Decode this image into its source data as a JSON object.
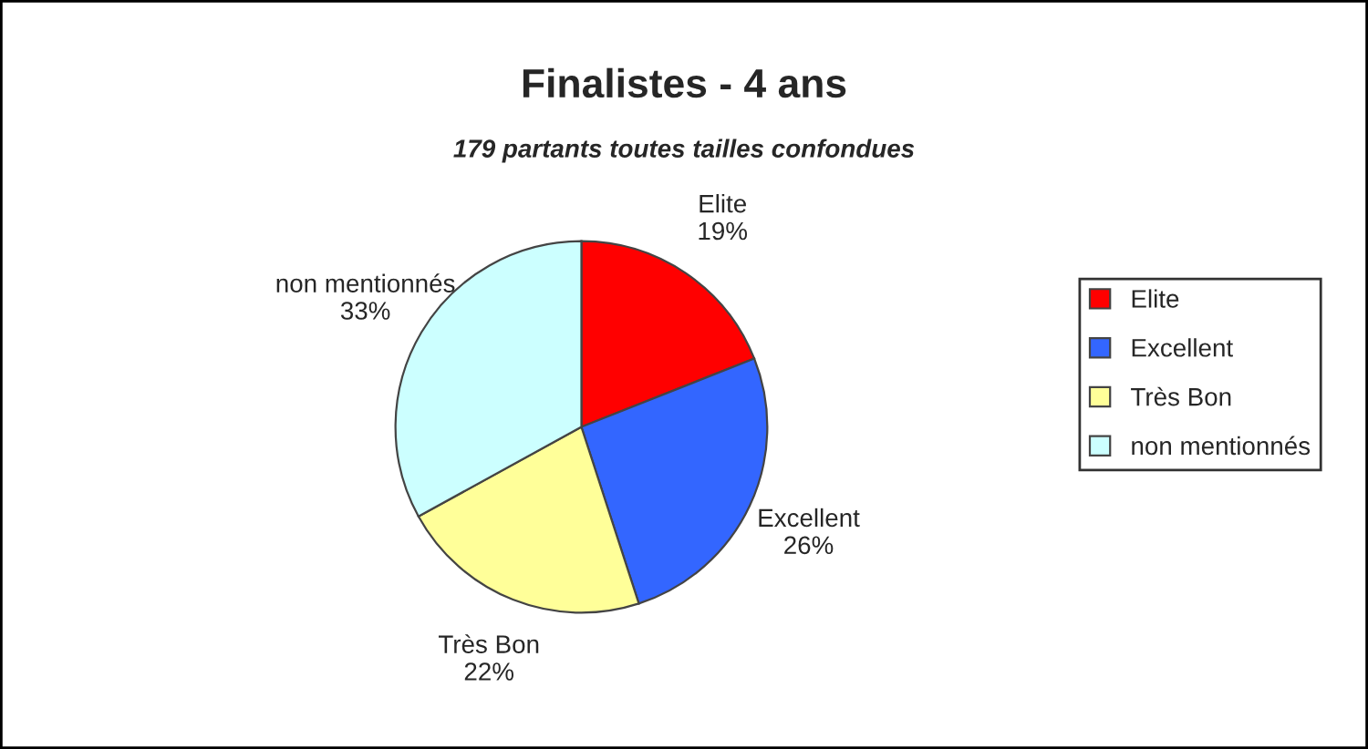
{
  "chart_data": {
    "type": "pie",
    "title": "Finalistes - 4 ans",
    "subtitle": "179 partants toutes tailles confondues",
    "categories": [
      "Elite",
      "Excellent",
      "Très Bon",
      "non mentionnés"
    ],
    "values": [
      19,
      26,
      22,
      33
    ],
    "colors": [
      "#ff0000",
      "#3366ff",
      "#ffff99",
      "#ccffff"
    ],
    "value_labels": [
      "19%",
      "26%",
      "22%",
      "33%"
    ],
    "legend": "right"
  }
}
